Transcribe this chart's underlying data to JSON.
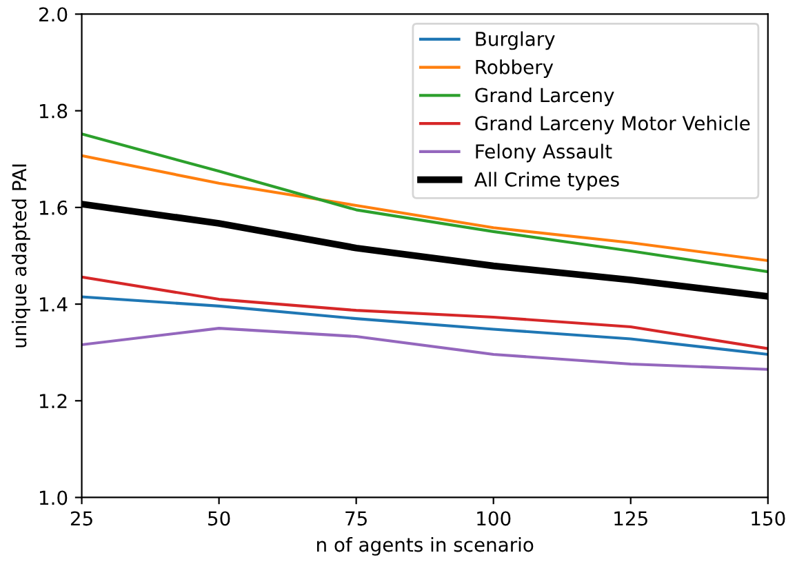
{
  "chart_data": {
    "type": "line",
    "xlabel": "n of agents in scenario",
    "ylabel": "unique adapted PAI",
    "x": [
      25,
      50,
      75,
      100,
      125,
      150
    ],
    "series": [
      {
        "name": "Burglary",
        "color": "#1f77b4",
        "values": [
          1.415,
          1.396,
          1.37,
          1.348,
          1.328,
          1.296
        ]
      },
      {
        "name": "Robbery",
        "color": "#ff7f0e",
        "values": [
          1.707,
          1.65,
          1.604,
          1.558,
          1.527,
          1.49
        ]
      },
      {
        "name": "Grand Larceny",
        "color": "#2ca02c",
        "values": [
          1.752,
          1.675,
          1.595,
          1.55,
          1.51,
          1.467
        ]
      },
      {
        "name": "Grand Larceny Motor Vehicle",
        "color": "#d62728",
        "values": [
          1.456,
          1.41,
          1.387,
          1.373,
          1.353,
          1.308
        ]
      },
      {
        "name": "Felony Assault",
        "color": "#9467bd",
        "values": [
          1.316,
          1.35,
          1.333,
          1.296,
          1.276,
          1.265
        ]
      },
      {
        "name": "All Crime types",
        "color": "#000000",
        "values": [
          1.607,
          1.567,
          1.516,
          1.479,
          1.45,
          1.416
        ]
      }
    ],
    "xlim": [
      25,
      150
    ],
    "xticks": [
      25,
      50,
      75,
      100,
      125,
      150
    ],
    "ylim": [
      1.0,
      2.0
    ],
    "yticks": [
      {
        "value": 1.0,
        "label": "1.0"
      },
      {
        "value": 1.2,
        "label": "1.2"
      },
      {
        "value": 1.4,
        "label": "1.4"
      },
      {
        "value": 1.6,
        "label": "1.6"
      },
      {
        "value": 1.8,
        "label": "1.8"
      },
      {
        "value": 2.0,
        "label": "2.0"
      }
    ],
    "legend": "top right",
    "grid": false
  }
}
